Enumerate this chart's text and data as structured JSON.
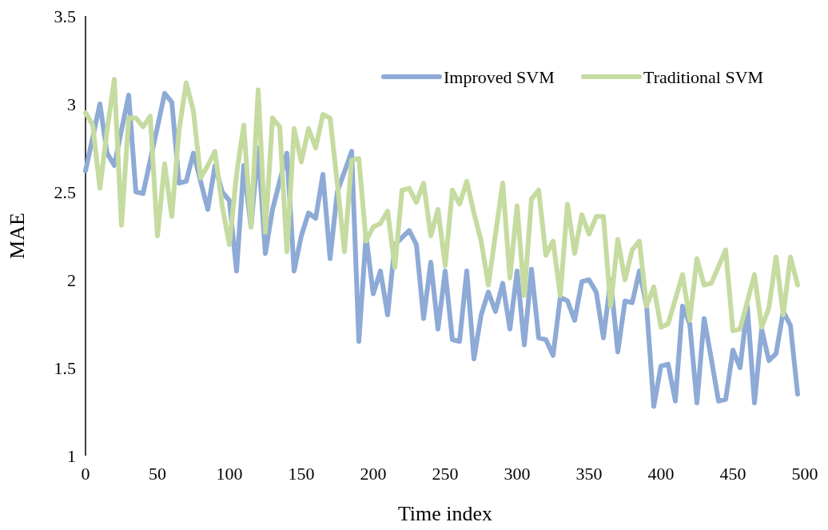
{
  "chart_data": {
    "type": "line",
    "xlabel": "Time index",
    "ylabel": "MAE",
    "xlim": [
      0,
      500
    ],
    "xticks": [
      0,
      50,
      100,
      150,
      200,
      250,
      300,
      350,
      400,
      450,
      500
    ],
    "ylim": [
      1,
      3.5
    ],
    "yticks": [
      1,
      1.5,
      2,
      2.5,
      3,
      3.5
    ],
    "grid": false,
    "legend": "top right",
    "line_style": "solid",
    "marker": "none",
    "series": [
      {
        "name": "Improved SVM",
        "color": "#8eaad6",
        "x": [
          0,
          10,
          15,
          20,
          30,
          35,
          40,
          55,
          60,
          65,
          70,
          75,
          85,
          90,
          95,
          100,
          105,
          110,
          115,
          120,
          125,
          130,
          140,
          145,
          150,
          155,
          160,
          165,
          170,
          175,
          185,
          190,
          195,
          200,
          205,
          210,
          215,
          225,
          230,
          235,
          240,
          245,
          250,
          255,
          260,
          265,
          270,
          275,
          280,
          285,
          290,
          295,
          300,
          305,
          310,
          315,
          320,
          325,
          330,
          335,
          340,
          345,
          350,
          355,
          360,
          365,
          370,
          375,
          380,
          385,
          390,
          395,
          400,
          405,
          410,
          415,
          420,
          425,
          430,
          435,
          440,
          445,
          450,
          455,
          460,
          465,
          470,
          475,
          480,
          485,
          490,
          495
        ],
        "values": [
          2.62,
          3.0,
          2.72,
          2.65,
          3.05,
          2.5,
          2.49,
          3.06,
          3.01,
          2.55,
          2.56,
          2.72,
          2.4,
          2.65,
          2.5,
          2.45,
          2.05,
          2.65,
          2.3,
          2.75,
          2.15,
          2.4,
          2.72,
          2.05,
          2.25,
          2.38,
          2.35,
          2.6,
          2.12,
          2.5,
          2.73,
          1.65,
          2.25,
          1.92,
          2.05,
          1.8,
          2.2,
          2.28,
          2.2,
          1.78,
          2.1,
          1.72,
          2.05,
          1.66,
          1.65,
          2.05,
          1.55,
          1.8,
          1.93,
          1.82,
          1.98,
          1.72,
          2.05,
          1.63,
          2.06,
          1.67,
          1.66,
          1.57,
          1.9,
          1.88,
          1.77,
          1.99,
          2.0,
          1.93,
          1.67,
          2.0,
          1.59,
          1.88,
          1.87,
          2.05,
          1.85,
          1.28,
          1.51,
          1.52,
          1.31,
          1.85,
          1.75,
          1.3,
          1.78,
          1.55,
          1.31,
          1.32,
          1.6,
          1.5,
          1.85,
          1.3,
          1.72,
          1.54,
          1.58,
          1.82,
          1.74,
          1.35
        ]
      },
      {
        "name": "Traditional SVM",
        "color": "#c5dba0",
        "x": [
          0,
          5,
          10,
          15,
          20,
          25,
          30,
          35,
          40,
          45,
          50,
          55,
          60,
          65,
          70,
          75,
          80,
          85,
          90,
          95,
          100,
          105,
          110,
          115,
          120,
          125,
          130,
          135,
          140,
          145,
          150,
          155,
          160,
          165,
          170,
          175,
          180,
          185,
          190,
          195,
          200,
          205,
          210,
          215,
          220,
          225,
          230,
          235,
          240,
          245,
          250,
          255,
          260,
          265,
          270,
          275,
          280,
          290,
          295,
          300,
          305,
          310,
          315,
          320,
          325,
          330,
          335,
          340,
          345,
          350,
          355,
          360,
          365,
          370,
          375,
          380,
          385,
          390,
          395,
          400,
          405,
          415,
          420,
          425,
          430,
          435,
          445,
          450,
          455,
          465,
          470,
          475,
          480,
          485,
          490,
          495
        ],
        "values": [
          2.95,
          2.88,
          2.52,
          2.85,
          3.14,
          2.31,
          2.92,
          2.92,
          2.87,
          2.93,
          2.25,
          2.66,
          2.36,
          2.85,
          3.12,
          2.96,
          2.58,
          2.65,
          2.73,
          2.42,
          2.2,
          2.6,
          2.88,
          2.3,
          3.08,
          2.27,
          2.92,
          2.87,
          2.16,
          2.86,
          2.67,
          2.86,
          2.75,
          2.94,
          2.92,
          2.55,
          2.16,
          2.68,
          2.69,
          2.22,
          2.3,
          2.32,
          2.39,
          2.07,
          2.51,
          2.52,
          2.44,
          2.55,
          2.25,
          2.4,
          2.08,
          2.51,
          2.43,
          2.56,
          2.38,
          2.22,
          1.97,
          2.55,
          2.01,
          2.42,
          1.91,
          2.46,
          2.51,
          2.14,
          2.22,
          1.91,
          2.43,
          2.15,
          2.37,
          2.26,
          2.36,
          2.36,
          1.85,
          2.23,
          2.0,
          2.17,
          2.22,
          1.85,
          1.96,
          1.73,
          1.75,
          2.03,
          1.77,
          2.12,
          1.97,
          1.98,
          2.17,
          1.71,
          1.72,
          2.03,
          1.73,
          1.84,
          2.13,
          1.8,
          2.13,
          1.97
        ]
      }
    ]
  }
}
